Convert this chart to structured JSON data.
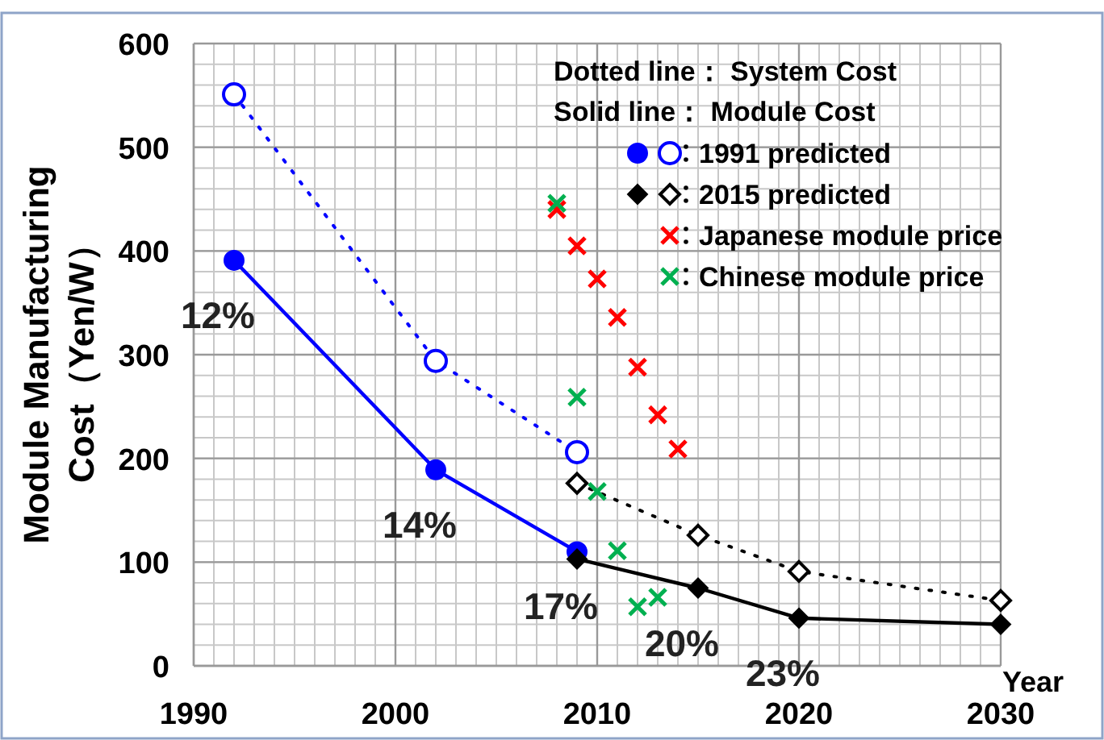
{
  "chart_data": {
    "type": "line",
    "xlabel": "Year",
    "ylabel": "Module Manufacturing\nCost（Yen/W）",
    "legend_title": "Dotted line： System Cost\nSolid line： Module Cost",
    "xlim": [
      1990,
      2030
    ],
    "xticks": [
      1990,
      2000,
      2010,
      2020,
      2030
    ],
    "ylim": [
      0,
      600
    ],
    "yticks": [
      0,
      100,
      200,
      300,
      400,
      500,
      600
    ],
    "grid": true,
    "legend": "top right",
    "series": [
      {
        "name": "1991 predicted",
        "type": "line",
        "color": "#0000ff",
        "marker": "circle",
        "line_style": "solid",
        "x": [
          1992,
          2002,
          2009
        ],
        "values": [
          391,
          189,
          110
        ]
      },
      {
        "type": "line",
        "color": "#0000ff",
        "marker": "circle",
        "line_style": "dotted",
        "x": [
          1992,
          2002,
          2009
        ],
        "values": [
          551,
          294,
          206
        ]
      },
      {
        "name": "2015 predicted",
        "type": "line",
        "color": "#000000",
        "marker": "diamond",
        "line_style": "solid",
        "x": [
          2009,
          2015,
          2020,
          2030
        ],
        "values": [
          103,
          75,
          46,
          40
        ]
      },
      {
        "type": "line",
        "color": "#000000",
        "marker": "diamond",
        "line_style": "dotted",
        "x": [
          2009,
          2015,
          2020,
          2030
        ],
        "values": [
          176,
          126,
          91,
          63
        ]
      },
      {
        "name": "Japanese module price",
        "type": "scatter",
        "color": "#ff0000",
        "marker": "cross",
        "x": [
          2008,
          2009,
          2010,
          2011,
          2012,
          2013,
          2014
        ],
        "values": [
          440,
          405,
          373,
          336,
          288,
          242,
          209
        ]
      },
      {
        "name": "Chinese module price",
        "type": "scatter",
        "color": "#00b050",
        "marker": "cross",
        "x": [
          2008,
          2009,
          2010,
          2011,
          2012,
          2013
        ],
        "values": [
          446,
          259,
          168,
          111,
          57,
          66
        ]
      }
    ],
    "annotations": [
      {
        "text": "12%",
        "x": 1992,
        "y": 391
      },
      {
        "text": "14%",
        "x": 2002,
        "y": 189
      },
      {
        "text": "17%",
        "x": 2009,
        "y": 110
      },
      {
        "text": "20%",
        "x": 2015,
        "y": 75
      },
      {
        "text": "23%",
        "x": 2020,
        "y": 46
      }
    ]
  }
}
